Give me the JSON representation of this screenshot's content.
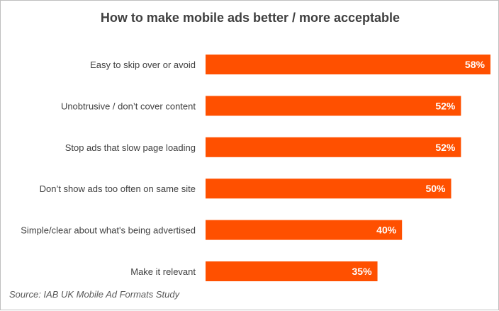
{
  "chart_data": {
    "type": "bar",
    "orientation": "horizontal",
    "title": "How to make mobile ads better / more acceptable",
    "categories": [
      "Easy to skip over or avoid",
      "Unobtrusive / don’t cover content",
      "Stop ads that slow page loading",
      "Don’t show ads too often on same site",
      "Simple/clear about what's being advertised",
      "Make it relevant"
    ],
    "values": [
      58,
      52,
      52,
      50,
      40,
      35
    ],
    "value_labels": [
      "58%",
      "52%",
      "52%",
      "50%",
      "40%",
      "35%"
    ],
    "unit": "%",
    "xlim": [
      0,
      60
    ],
    "grid": false,
    "legend": "none",
    "bar_color": "#ff5000",
    "source": "Source: IAB UK Mobile Ad Formats Study"
  }
}
